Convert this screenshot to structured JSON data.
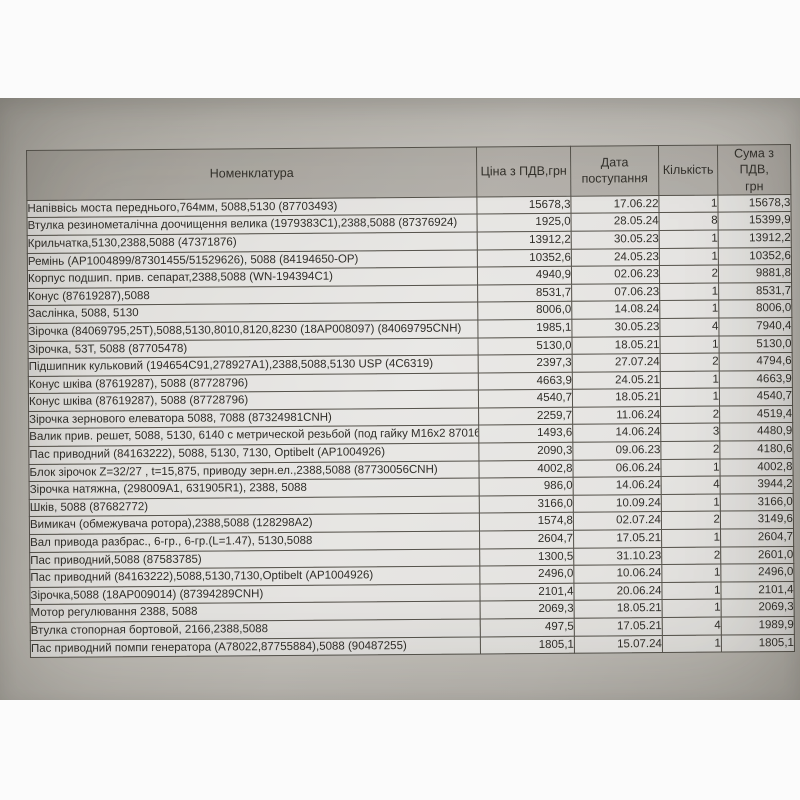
{
  "photo": {
    "paper_color_dark": "#a8a59e",
    "paper_color_light": "#c6c3bd",
    "cell_color": "#dbd9d4",
    "header_fill_color": "#c0beb8",
    "grid_line_color": "#57544d",
    "text_color": "#2f2d28",
    "page_background": "#fbfbfb"
  },
  "table": {
    "headers": {
      "nomenclature": "Номенклатура",
      "price": "Ціна з ПДВ,грн",
      "date": "Дата\nпоступання",
      "qty": "Кількість",
      "sum": "Сума з ПДВ,\nгрн"
    },
    "rows": [
      {
        "name": "Напіввісь моста переднього,764мм, 5088,5130 (87703493)",
        "price": "15678,3",
        "date": "17.06.22",
        "qty": "1",
        "sum": "15678,3"
      },
      {
        "name": "Втулка резинометалічна доочищення велика (1979383C1),2388,5088 (87376924)",
        "price": "1925,0",
        "date": "28.05.24",
        "qty": "8",
        "sum": "15399,9"
      },
      {
        "name": "Крильчатка,5130,2388,5088 (47371876)",
        "price": "13912,2",
        "date": "30.05.23",
        "qty": "1",
        "sum": "13912,2"
      },
      {
        "name": "Ремінь (AP1004899/87301455/51529626), 5088 (84194650-OP)",
        "price": "10352,6",
        "date": "24.05.23",
        "qty": "1",
        "sum": "10352,6"
      },
      {
        "name": "Корпус подшип. прив. сепарат,2388,5088 (WN-194394C1)",
        "price": "4940,9",
        "date": "02.06.23",
        "qty": "2",
        "sum": "9881,8"
      },
      {
        "name": "Конус (87619287),5088",
        "price": "8531,7",
        "date": "07.06.23",
        "qty": "1",
        "sum": "8531,7"
      },
      {
        "name": "Заслінка, 5088, 5130",
        "price": "8006,0",
        "date": "14.08.24",
        "qty": "1",
        "sum": "8006,0"
      },
      {
        "name": "Зірочка (84069795,25T),5088,5130,8010,8120,8230 (18AP008097) (84069795CNH)",
        "price": "1985,1",
        "date": "30.05.23",
        "qty": "4",
        "sum": "7940,4"
      },
      {
        "name": "Зірочка, 53T, 5088 (87705478)",
        "price": "5130,0",
        "date": "18.05.21",
        "qty": "1",
        "sum": "5130,0"
      },
      {
        "name": "Підшипник кульковий (194654C91,278927A1),2388,5088,5130 USP (4C6319)",
        "price": "2397,3",
        "date": "27.07.24",
        "qty": "2",
        "sum": "4794,6"
      },
      {
        "name": "Конус шківа (87619287), 5088 (87728796)",
        "price": "4663,9",
        "date": "24.05.21",
        "qty": "1",
        "sum": "4663,9"
      },
      {
        "name": "Конус шківа (87619287), 5088 (87728796)",
        "price": "4540,7",
        "date": "18.05.21",
        "qty": "1",
        "sum": "4540,7"
      },
      {
        "name": "Зірочка зернового елеватора 5088, 7088 (87324981CNH)",
        "price": "2259,7",
        "date": "11.06.24",
        "qty": "2",
        "sum": "4519,4"
      },
      {
        "name": "Валик прив. решет, 5088, 5130, 6140 с метрической резьбой (под гайку М16х2 87016",
        "price": "1493,6",
        "date": "14.06.24",
        "qty": "3",
        "sum": "4480,9"
      },
      {
        "name": "Пас приводний (84163222), 5088, 5130, 7130, Optibelt (AP1004926)",
        "price": "2090,3",
        "date": "09.06.23",
        "qty": "2",
        "sum": "4180,6"
      },
      {
        "name": "Блок зірочок Z=32/27 , t=15,875, приводу зерн.ел.,2388,5088 (87730056CNH)",
        "price": "4002,8",
        "date": "06.06.24",
        "qty": "1",
        "sum": "4002,8"
      },
      {
        "name": "Зірочка натяжна, (298009A1, 631905R1), 2388, 5088",
        "price": "986,0",
        "date": "14.06.24",
        "qty": "4",
        "sum": "3944,2"
      },
      {
        "name": "Шків, 5088 (87682772)",
        "price": "3166,0",
        "date": "10.09.24",
        "qty": "1",
        "sum": "3166,0"
      },
      {
        "name": "Вимикач (обмежувача ротора),2388,5088 (128298A2)",
        "price": "1574,8",
        "date": "02.07.24",
        "qty": "2",
        "sum": "3149,6"
      },
      {
        "name": "Вал привода разбрас., 6-гр., 6-гр.(L=1.47), 5130,5088",
        "price": "2604,7",
        "date": "17.05.21",
        "qty": "1",
        "sum": "2604,7"
      },
      {
        "name": "Пас приводний,5088 (87583785)",
        "price": "1300,5",
        "date": "31.10.23",
        "qty": "2",
        "sum": "2601,0"
      },
      {
        "name": "Пас приводний (84163222),5088,5130,7130,Optibelt (AP1004926)",
        "price": "2496,0",
        "date": "10.06.24",
        "qty": "1",
        "sum": "2496,0"
      },
      {
        "name": "Зірочка,5088 (18AP009014) (87394289CNH)",
        "price": "2101,4",
        "date": "20.06.24",
        "qty": "1",
        "sum": "2101,4"
      },
      {
        "name": "Мотор регулювання 2388, 5088",
        "price": "2069,3",
        "date": "18.05.21",
        "qty": "1",
        "sum": "2069,3"
      },
      {
        "name": "Втулка стопорная бортовой, 2166,2388,5088",
        "price": "497,5",
        "date": "17.05.21",
        "qty": "4",
        "sum": "1989,9"
      },
      {
        "name": "Пас приводний помпи генератора (A78022,87755884),5088 (90487255)",
        "price": "1805,1",
        "date": "15.07.24",
        "qty": "1",
        "sum": "1805,1"
      }
    ]
  }
}
